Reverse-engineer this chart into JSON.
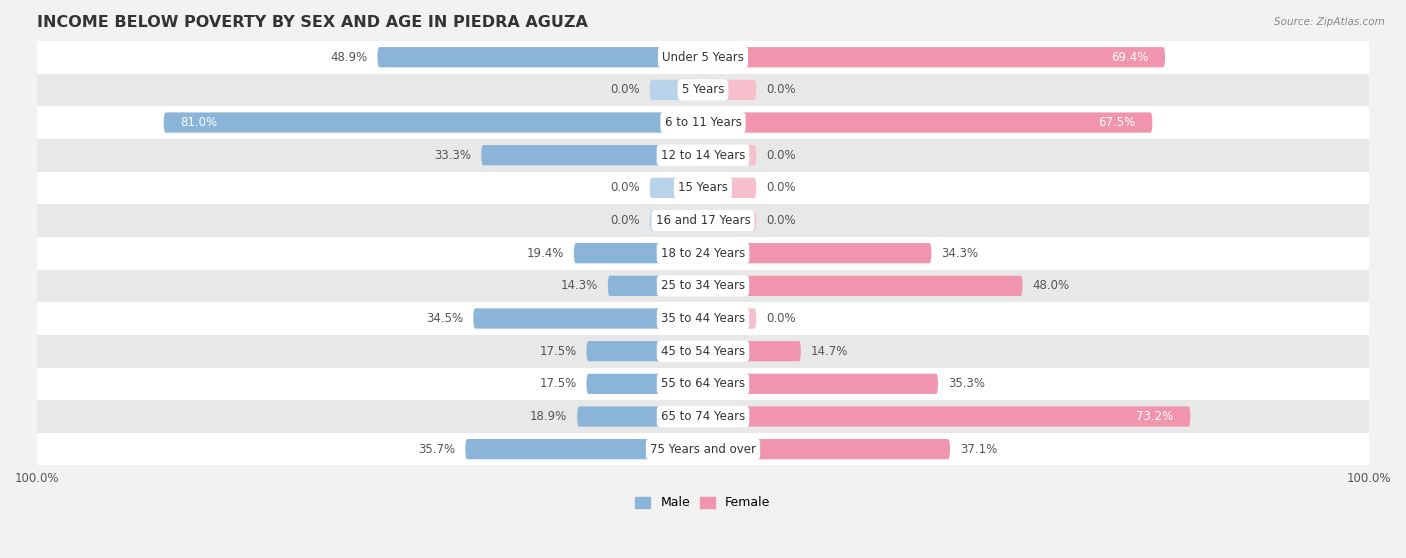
{
  "title": "INCOME BELOW POVERTY BY SEX AND AGE IN PIEDRA AGUZA",
  "source": "Source: ZipAtlas.com",
  "categories": [
    "Under 5 Years",
    "5 Years",
    "6 to 11 Years",
    "12 to 14 Years",
    "15 Years",
    "16 and 17 Years",
    "18 to 24 Years",
    "25 to 34 Years",
    "35 to 44 Years",
    "45 to 54 Years",
    "55 to 64 Years",
    "65 to 74 Years",
    "75 Years and over"
  ],
  "male": [
    48.9,
    0.0,
    81.0,
    33.3,
    0.0,
    0.0,
    19.4,
    14.3,
    34.5,
    17.5,
    17.5,
    18.9,
    35.7
  ],
  "female": [
    69.4,
    0.0,
    67.5,
    0.0,
    0.0,
    0.0,
    34.3,
    48.0,
    0.0,
    14.7,
    35.3,
    73.2,
    37.1
  ],
  "male_color": "#8ab4d8",
  "female_color": "#f195ae",
  "male_color_light": "#b8d3ea",
  "female_color_light": "#f7bfcc",
  "male_label": "Male",
  "female_label": "Female",
  "axis_limit": 100.0,
  "background_color": "#f2f2f2",
  "row_white_color": "#ffffff",
  "row_gray_color": "#e8e8e8",
  "title_fontsize": 11.5,
  "label_fontsize": 8.5,
  "tick_fontsize": 8.5,
  "bar_height": 0.62,
  "min_bar_val": 8.0
}
